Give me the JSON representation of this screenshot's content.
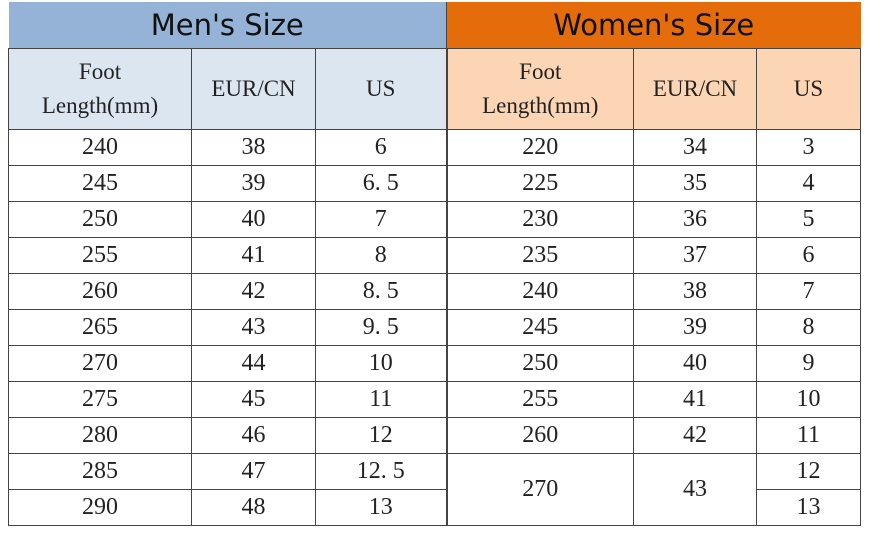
{
  "mens": {
    "title": "Men's Size",
    "headers": [
      "Foot\nLength(mm)",
      "EUR/CN",
      "US"
    ],
    "rows": [
      [
        "240",
        "38",
        "6"
      ],
      [
        "245",
        "39",
        "6. 5"
      ],
      [
        "250",
        "40",
        "7"
      ],
      [
        "255",
        "41",
        "8"
      ],
      [
        "260",
        "42",
        "8. 5"
      ],
      [
        "265",
        "43",
        "9. 5"
      ],
      [
        "270",
        "44",
        "10"
      ],
      [
        "275",
        "45",
        "11"
      ],
      [
        "280",
        "46",
        "12"
      ],
      [
        "285",
        "47",
        "12. 5"
      ],
      [
        "290",
        "48",
        "13"
      ]
    ]
  },
  "womens": {
    "title": "Women's Size",
    "headers": [
      "Foot\nLength(mm)",
      "EUR/CN",
      "US"
    ],
    "rows": [
      [
        "220",
        "34",
        "3"
      ],
      [
        "225",
        "35",
        "4"
      ],
      [
        "230",
        "36",
        "5"
      ],
      [
        "235",
        "37",
        "6"
      ],
      [
        "240",
        "38",
        "7"
      ],
      [
        "245",
        "39",
        "8"
      ],
      [
        "250",
        "40",
        "9"
      ],
      [
        "255",
        "41",
        "10"
      ],
      [
        "260",
        "42",
        "11"
      ],
      [
        "270",
        "43",
        "12"
      ],
      [
        "",
        "",
        "13"
      ]
    ]
  },
  "colors": {
    "mens_header": "#95b3d7",
    "mens_subheader": "#dce6f1",
    "womens_header": "#e46c0a",
    "womens_subheader": "#fcd5b4"
  }
}
